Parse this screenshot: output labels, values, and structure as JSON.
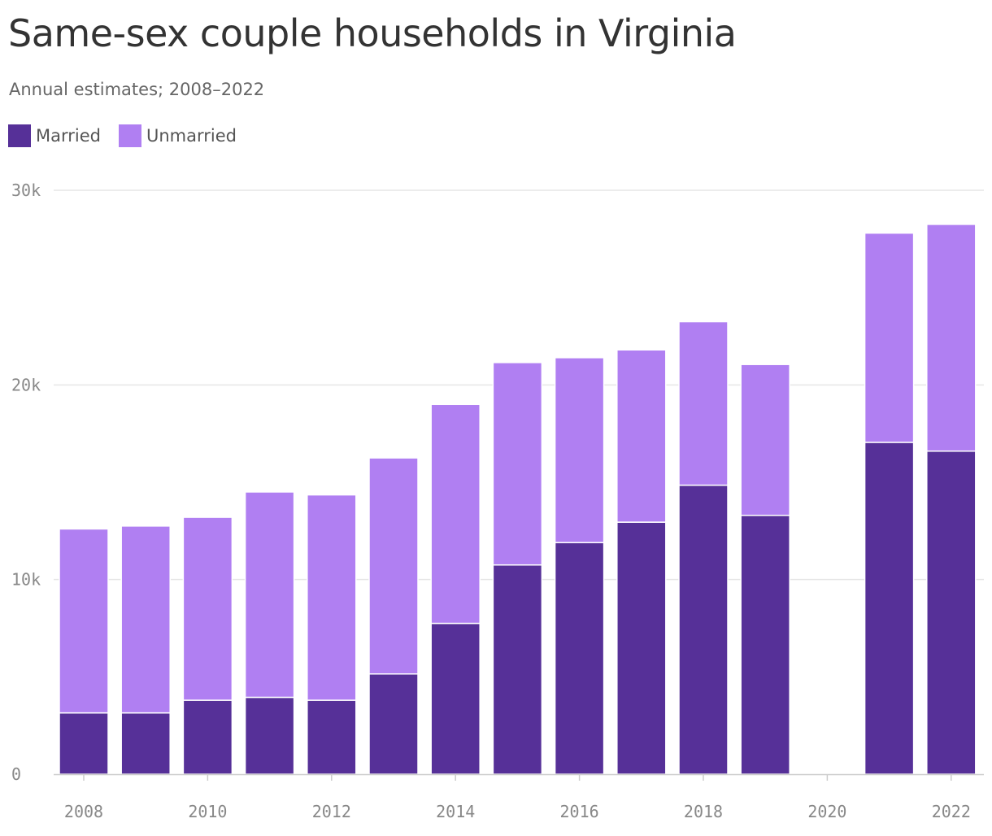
{
  "chart_data": {
    "type": "bar",
    "stacked": true,
    "title": "Same-sex couple households in Virginia",
    "subtitle": "Annual estimates; 2008–2022",
    "xlabel": "",
    "ylabel": "",
    "ylim": [
      0,
      30000
    ],
    "y_ticks": [
      0,
      10000,
      20000,
      30000
    ],
    "y_tick_labels": [
      "0",
      "10k",
      "20k",
      "30k"
    ],
    "x_tick_labels": [
      "2008",
      "2010",
      "2012",
      "2014",
      "2016",
      "2018",
      "2020",
      "2022"
    ],
    "categories": [
      "2008",
      "2009",
      "2010",
      "2011",
      "2012",
      "2013",
      "2014",
      "2015",
      "2016",
      "2017",
      "2018",
      "2019",
      "2020",
      "2021",
      "2022"
    ],
    "series": [
      {
        "name": "Married",
        "color": "#563098",
        "values": [
          3150,
          3150,
          3800,
          3950,
          3800,
          5150,
          7750,
          10750,
          11900,
          12950,
          14850,
          13300,
          null,
          17050,
          16600
        ]
      },
      {
        "name": "Unmarried",
        "color": "#b07ff2",
        "values": [
          9450,
          9600,
          9400,
          10550,
          10550,
          11100,
          11250,
          10400,
          9500,
          8850,
          8400,
          7750,
          null,
          10750,
          11650
        ]
      }
    ],
    "legend": "top-left",
    "grid": true
  },
  "colors": {
    "grid": "#e6e6e6",
    "axis": "#cccccc",
    "title": "#333333",
    "subtitle": "#666666"
  }
}
